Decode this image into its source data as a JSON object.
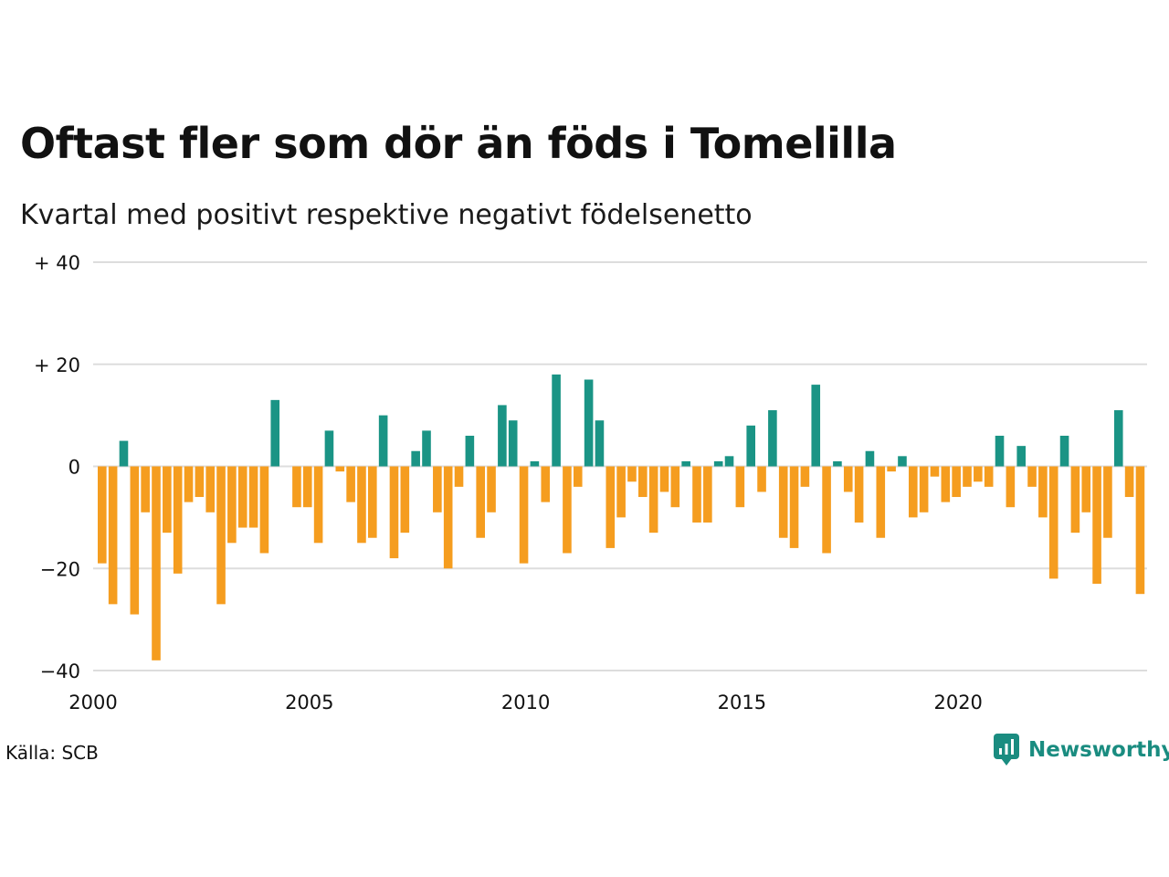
{
  "header": {
    "title": "Oftast fler som dör än föds i Tomelilla",
    "subtitle": "Kvartal med positivt respektive negativt födelsenetto"
  },
  "footer": {
    "source": "Källa: SCB",
    "brand": "Newsworthy"
  },
  "colors": {
    "positive": "#1a9485",
    "negative": "#f59d1f",
    "grid": "#dddddd",
    "brand": "#1a8c80"
  },
  "chart_data": {
    "type": "bar",
    "title": "Oftast fler som dör än föds i Tomelilla",
    "subtitle": "Kvartal med positivt respektive negativt födelsenetto",
    "xlabel": "",
    "ylabel": "",
    "ylim": [
      -40,
      40
    ],
    "yticks": [
      {
        "value": 40,
        "label": "+ 40"
      },
      {
        "value": 20,
        "label": "+ 20"
      },
      {
        "value": 0,
        "label": "0"
      },
      {
        "value": -20,
        "label": "−20"
      },
      {
        "value": -40,
        "label": "−40"
      }
    ],
    "xticks": [
      "2000",
      "2005",
      "2010",
      "2015",
      "2020"
    ],
    "grid": true,
    "start": "2000 Q1",
    "values": [
      -19,
      -27,
      5,
      -29,
      -9,
      -38,
      -13,
      -21,
      -7,
      -6,
      -9,
      -27,
      -15,
      -12,
      -12,
      -17,
      13,
      0,
      -8,
      -8,
      -15,
      7,
      -1,
      -7,
      -15,
      -14,
      10,
      -18,
      -13,
      3,
      7,
      -9,
      -20,
      -4,
      6,
      -14,
      -9,
      12,
      9,
      -19,
      1,
      -7,
      18,
      -17,
      -4,
      17,
      9,
      -16,
      -10,
      -3,
      -6,
      -13,
      -5,
      -8,
      1,
      -11,
      -11,
      1,
      2,
      -8,
      8,
      -5,
      11,
      -14,
      -16,
      -4,
      16,
      -17,
      1,
      -5,
      -11,
      3,
      -14,
      -1,
      2,
      -10,
      -9,
      -2,
      -7,
      -6,
      -4,
      -3,
      -4,
      6,
      -8,
      4,
      -4,
      -10,
      -22,
      6,
      -13,
      -9,
      -23,
      -14,
      11,
      -6,
      -25
    ]
  }
}
